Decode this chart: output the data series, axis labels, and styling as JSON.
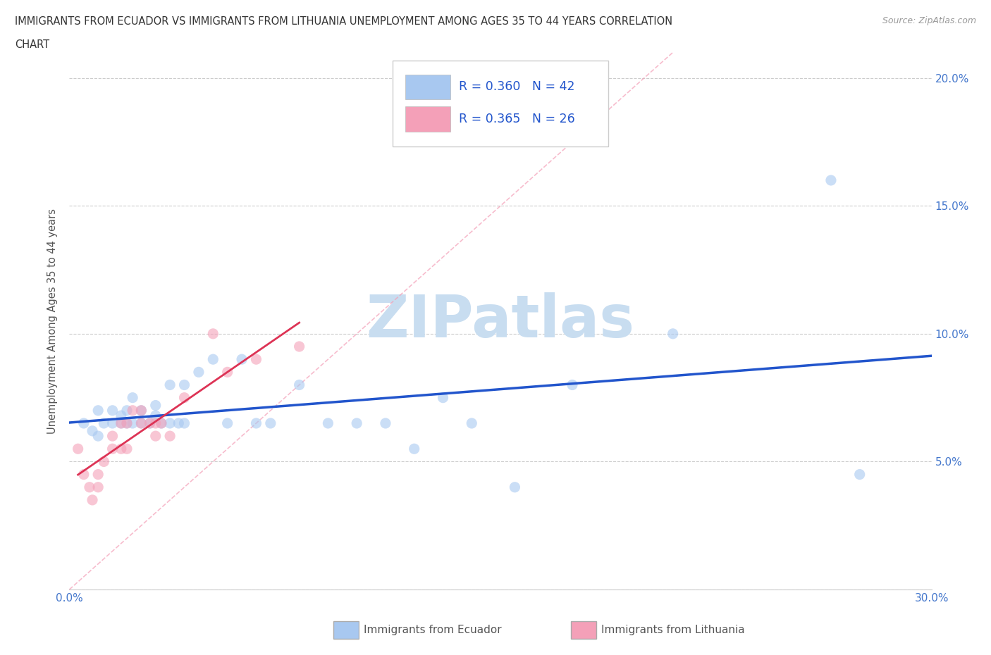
{
  "title_line1": "IMMIGRANTS FROM ECUADOR VS IMMIGRANTS FROM LITHUANIA UNEMPLOYMENT AMONG AGES 35 TO 44 YEARS CORRELATION",
  "title_line2": "CHART",
  "source": "Source: ZipAtlas.com",
  "ylabel": "Unemployment Among Ages 35 to 44 years",
  "xlim": [
    0.0,
    0.3
  ],
  "ylim": [
    0.0,
    0.21
  ],
  "ecuador_color": "#a8c8f0",
  "lithuania_color": "#f4a0b8",
  "ecuador_R": 0.36,
  "ecuador_N": 42,
  "lithuania_R": 0.365,
  "lithuania_N": 26,
  "trendline_ecuador_color": "#2255cc",
  "trendline_lithuania_color": "#dd3355",
  "diagonal_color": "#f4a0b8",
  "watermark_color": "#c8ddf0",
  "legend_label_ecuador": "Immigrants from Ecuador",
  "legend_label_lithuania": "Immigrants from Lithuania",
  "ecuador_x": [
    0.005,
    0.008,
    0.01,
    0.01,
    0.012,
    0.015,
    0.015,
    0.018,
    0.018,
    0.02,
    0.02,
    0.022,
    0.022,
    0.025,
    0.025,
    0.028,
    0.03,
    0.03,
    0.032,
    0.035,
    0.035,
    0.038,
    0.04,
    0.04,
    0.045,
    0.05,
    0.055,
    0.06,
    0.065,
    0.07,
    0.08,
    0.09,
    0.1,
    0.11,
    0.12,
    0.13,
    0.14,
    0.155,
    0.175,
    0.21,
    0.265,
    0.275
  ],
  "ecuador_y": [
    0.065,
    0.062,
    0.06,
    0.07,
    0.065,
    0.065,
    0.07,
    0.065,
    0.068,
    0.065,
    0.07,
    0.065,
    0.075,
    0.065,
    0.07,
    0.065,
    0.068,
    0.072,
    0.065,
    0.065,
    0.08,
    0.065,
    0.065,
    0.08,
    0.085,
    0.09,
    0.065,
    0.09,
    0.065,
    0.065,
    0.08,
    0.065,
    0.065,
    0.065,
    0.055,
    0.075,
    0.065,
    0.04,
    0.08,
    0.1,
    0.16,
    0.045
  ],
  "lithuania_x": [
    0.003,
    0.005,
    0.007,
    0.008,
    0.01,
    0.01,
    0.012,
    0.015,
    0.015,
    0.018,
    0.018,
    0.02,
    0.02,
    0.022,
    0.025,
    0.025,
    0.028,
    0.03,
    0.03,
    0.032,
    0.035,
    0.04,
    0.05,
    0.055,
    0.065,
    0.08
  ],
  "lithuania_y": [
    0.055,
    0.045,
    0.04,
    0.035,
    0.04,
    0.045,
    0.05,
    0.055,
    0.06,
    0.055,
    0.065,
    0.055,
    0.065,
    0.07,
    0.065,
    0.07,
    0.065,
    0.06,
    0.065,
    0.065,
    0.06,
    0.075,
    0.1,
    0.085,
    0.09,
    0.095
  ]
}
